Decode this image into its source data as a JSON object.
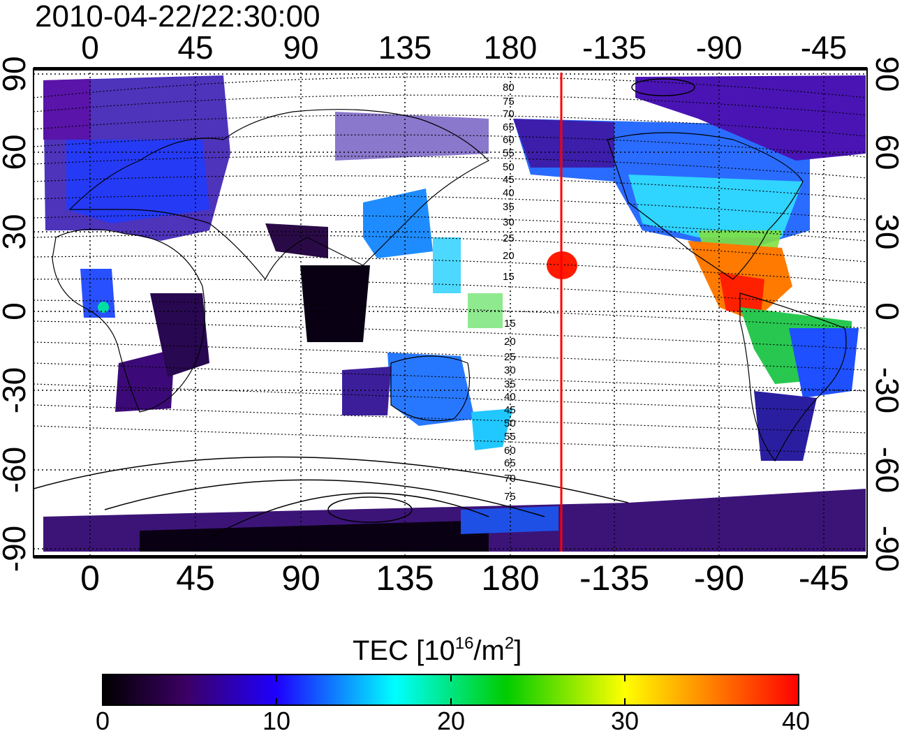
{
  "title": "2010-04-22/22:30:00",
  "map": {
    "x_ticks_top": [
      "0",
      "45",
      "90",
      "135",
      "180",
      "-135",
      "-90",
      "-45"
    ],
    "x_ticks_bottom": [
      "0",
      "45",
      "90",
      "135",
      "180",
      "-135",
      "-90",
      "-45"
    ],
    "y_ticks_left": [
      "90",
      "60",
      "30",
      "0",
      "-30",
      "-60",
      "-90"
    ],
    "y_ticks_right": [
      "90",
      "60",
      "30",
      "0",
      "-30",
      "-60",
      "-90"
    ],
    "contour_labels": [
      "80",
      "75",
      "70",
      "65",
      "60",
      "55",
      "50",
      "45",
      "40",
      "35",
      "30",
      "25",
      "20",
      "15",
      "15",
      "20",
      "25",
      "30",
      "35",
      "40",
      "45",
      "50",
      "55",
      "60",
      "65",
      "70",
      "75"
    ],
    "marker_line_color": "#ff0000",
    "marker_line_lon": -156
  },
  "colorbar": {
    "title_prefix": "TEC  [10",
    "title_sup1": "16",
    "title_mid": "/m",
    "title_sup2": "2",
    "title_suffix": "]",
    "ticks": [
      "0",
      "10",
      "20",
      "30",
      "40"
    ],
    "range": [
      0,
      40
    ],
    "colors": [
      "#000000",
      "#3c0064",
      "#1e00ff",
      "#00ffff",
      "#00cc00",
      "#ffff00",
      "#ff0000"
    ]
  }
}
